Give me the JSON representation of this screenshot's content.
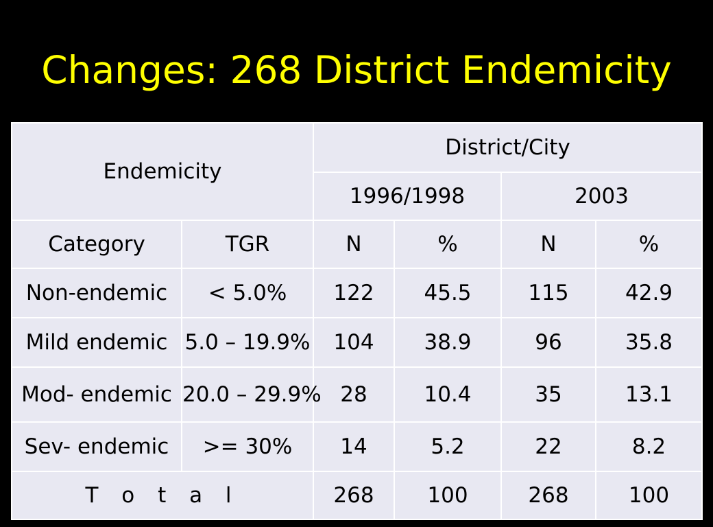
{
  "slide": {
    "title": "Changes: 268 District Endemicity"
  },
  "table": {
    "header": {
      "endemicity": "Endemicity",
      "district_city": "District/City",
      "period_1": "1996/1998",
      "period_2": "2003",
      "category": "Category",
      "tgr": "TGR",
      "n_1": "N",
      "pct_1": "%",
      "n_2": "N",
      "pct_2": "%"
    },
    "rows": [
      {
        "category": "Non-endemic",
        "tgr": "< 5.0%",
        "n_1996": "122",
        "pct_1996": "45.5",
        "n_2003": "115",
        "pct_2003": "42.9"
      },
      {
        "category": "Mild endemic",
        "tgr": "5.0 – 19.9%",
        "n_1996": "104",
        "pct_1996": "38.9",
        "n_2003": "96",
        "pct_2003": "35.8"
      },
      {
        "category": "Mod- endemic",
        "tgr": "20.0 – 29.9%",
        "n_1996": "28",
        "pct_1996": "10.4",
        "n_2003": "35",
        "pct_2003": "13.1"
      },
      {
        "category": "Sev- endemic",
        "tgr": ">= 30%",
        "n_1996": "14",
        "pct_1996": "5.2",
        "n_2003": "22",
        "pct_2003": "8.2"
      }
    ],
    "total": {
      "label": "T o t a l",
      "n_1996": "268",
      "pct_1996": "100",
      "n_2003": "268",
      "pct_2003": "100"
    }
  }
}
